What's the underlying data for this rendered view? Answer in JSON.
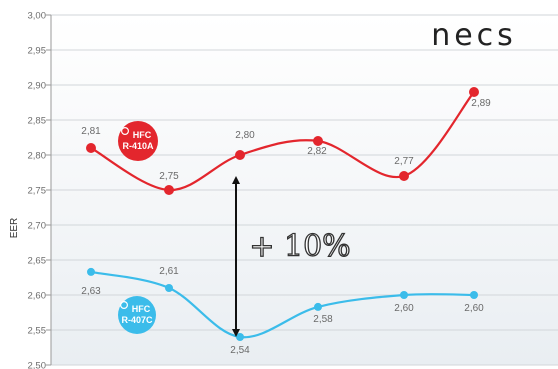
{
  "brand": "necs",
  "chart_data": {
    "type": "line",
    "ylabel": "EER",
    "xlabel": "",
    "title": "",
    "ylim": [
      2.5,
      3.0
    ],
    "yticks": [
      "3,00",
      "2,95",
      "2,90",
      "2,85",
      "2,80",
      "2,75",
      "2,70",
      "2,65",
      "2,60",
      "2,55",
      "2,50"
    ],
    "grid": "horizontal",
    "series": [
      {
        "badge": [
          "HFC",
          "R-410A"
        ],
        "color": "#e3262d",
        "values": [
          2.81,
          2.75,
          2.8,
          2.82,
          2.77,
          2.89
        ],
        "labels": [
          "2,81",
          "2,75",
          "2,80",
          "2,82",
          "2,77",
          "2,89"
        ]
      },
      {
        "badge": [
          "HFC",
          "R-407C"
        ],
        "color": "#3bbcea",
        "values": [
          2.633,
          2.61,
          2.54,
          2.583,
          2.6,
          2.6
        ],
        "labels": [
          "2,63",
          "2,61",
          "2,54",
          "2,58",
          "2,60",
          "2,60"
        ]
      }
    ],
    "annotation": "+ 10%"
  }
}
